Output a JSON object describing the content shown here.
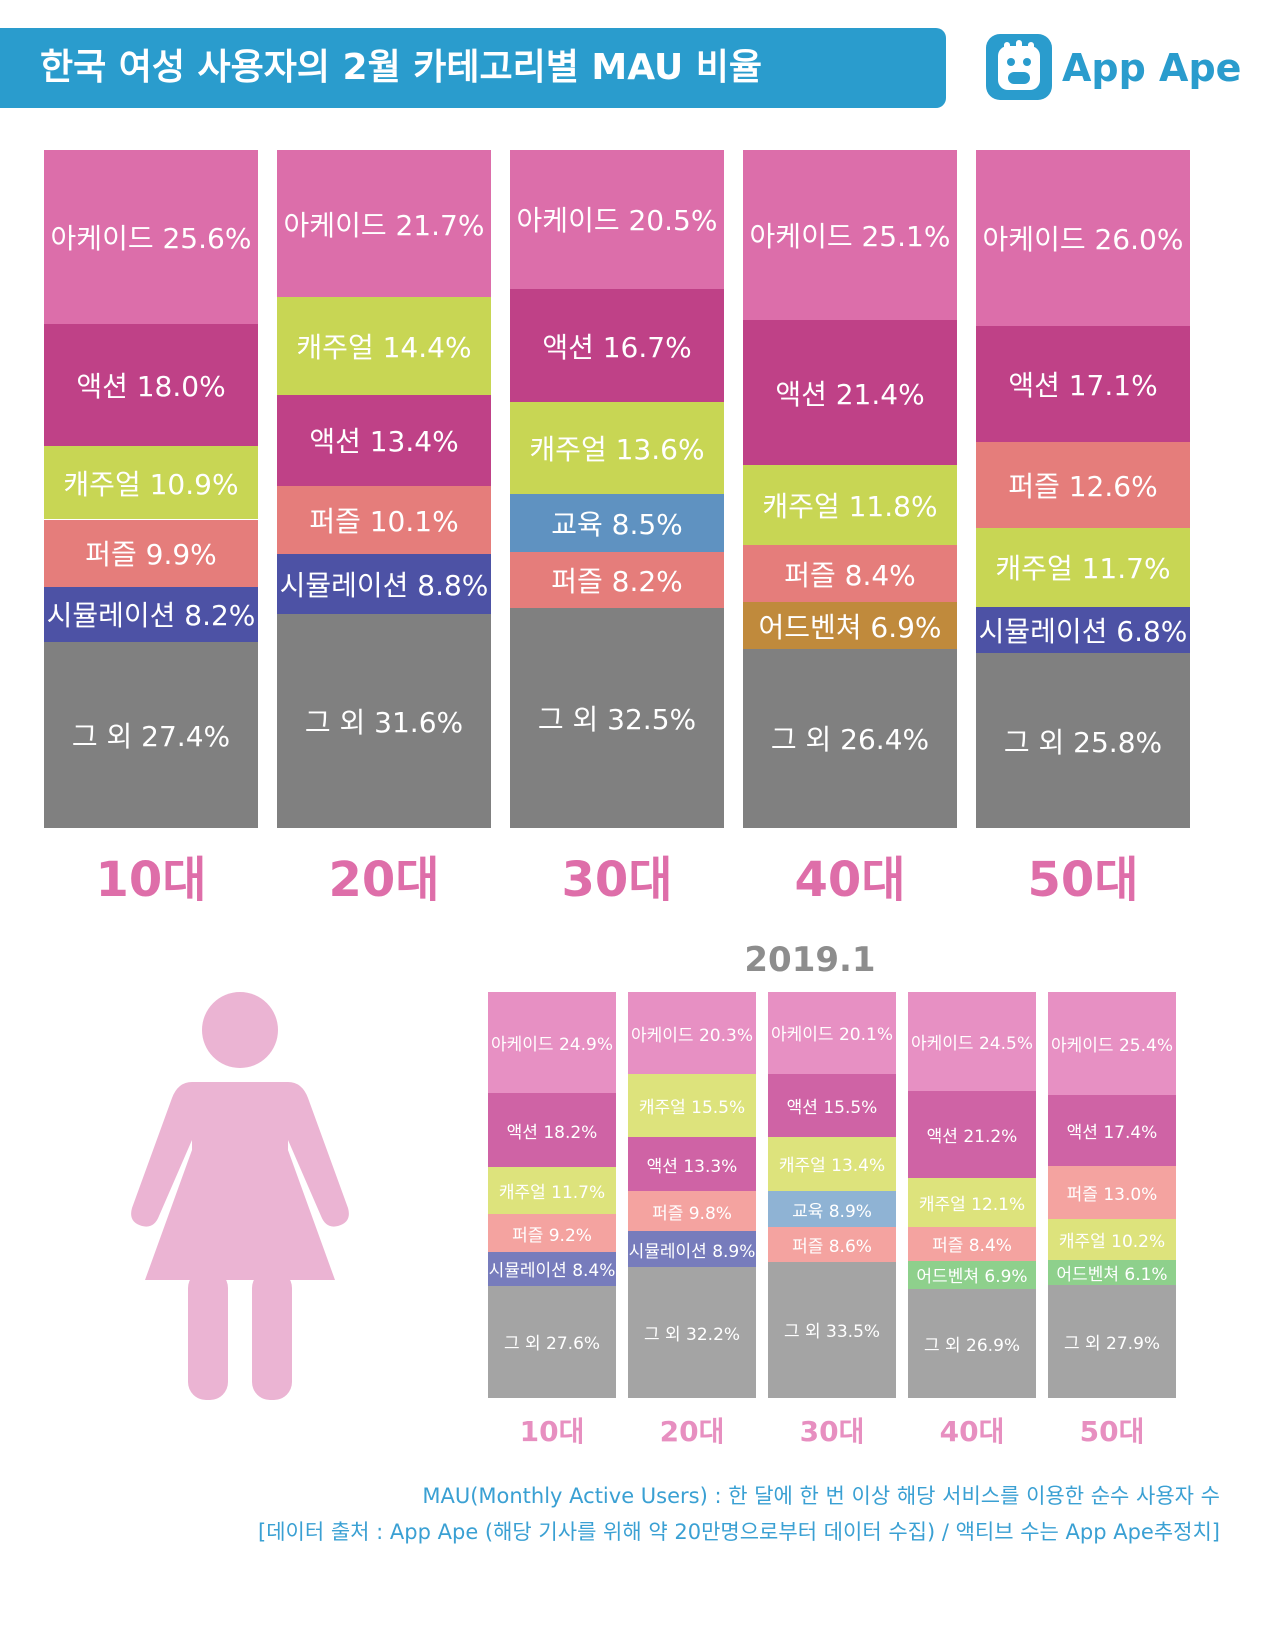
{
  "header": {
    "title": "한국 여성 사용자의 2월 카테고리별 MAU 비율",
    "logo_text": "App Ape"
  },
  "colors": {
    "아케이드": "#dc6eaa",
    "액션": "#bf4187",
    "캐주얼": "#c8d654",
    "퍼즐": "#e57d7b",
    "시뮬레이션": "#4d52a5",
    "교육": "#5f92c1",
    "어드벤쳐": "#c08a3c",
    "그 외": "#808080"
  },
  "colors_small": {
    "아케이드": "#e790c3",
    "액션": "#cf63a5",
    "캐주얼": "#dde37c",
    "퍼즐": "#f4a3a0",
    "시뮬레이션": "#777cbc",
    "교육": "#8fb3d4",
    "어드벤쳐": "#8ed08c",
    "그 외": "#a4a4a4"
  },
  "chart_data": [
    {
      "type": "bar",
      "stacked": true,
      "categories": [
        "10대",
        "20대",
        "30대",
        "40대",
        "50대"
      ],
      "bars": [
        {
          "segments": [
            {
              "label": "아케이드 25.6%",
              "category": "아케이드",
              "value": 25.6
            },
            {
              "label": "액션 18.0%",
              "category": "액션",
              "value": 18.0
            },
            {
              "label": "캐주얼 10.9%",
              "category": "캐주얼",
              "value": 10.9
            },
            {
              "label": "퍼즐 9.9%",
              "category": "퍼즐",
              "value": 9.9
            },
            {
              "label": "시뮬레이션 8.2%",
              "category": "시뮬레이션",
              "value": 8.2
            },
            {
              "label": "그 외 27.4%",
              "category": "그 외",
              "value": 27.4
            }
          ]
        },
        {
          "segments": [
            {
              "label": "아케이드 21.7%",
              "category": "아케이드",
              "value": 21.7
            },
            {
              "label": "캐주얼 14.4%",
              "category": "캐주얼",
              "value": 14.4
            },
            {
              "label": "액션 13.4%",
              "category": "액션",
              "value": 13.4
            },
            {
              "label": "퍼즐 10.1%",
              "category": "퍼즐",
              "value": 10.1
            },
            {
              "label": "시뮬레이션 8.8%",
              "category": "시뮬레이션",
              "value": 8.8
            },
            {
              "label": "그 외 31.6%",
              "category": "그 외",
              "value": 31.6
            }
          ]
        },
        {
          "segments": [
            {
              "label": "아케이드 20.5%",
              "category": "아케이드",
              "value": 20.5
            },
            {
              "label": "액션 16.7%",
              "category": "액션",
              "value": 16.7
            },
            {
              "label": "캐주얼 13.6%",
              "category": "캐주얼",
              "value": 13.6
            },
            {
              "label": "교육 8.5%",
              "category": "교육",
              "value": 8.5
            },
            {
              "label": "퍼즐 8.2%",
              "category": "퍼즐",
              "value": 8.2
            },
            {
              "label": "그 외 32.5%",
              "category": "그 외",
              "value": 32.5
            }
          ]
        },
        {
          "segments": [
            {
              "label": "아케이드 25.1%",
              "category": "아케이드",
              "value": 25.1
            },
            {
              "label": "액션 21.4%",
              "category": "액션",
              "value": 21.4
            },
            {
              "label": "캐주얼 11.8%",
              "category": "캐주얼",
              "value": 11.8
            },
            {
              "label": "퍼즐 8.4%",
              "category": "퍼즐",
              "value": 8.4
            },
            {
              "label": "어드벤쳐 6.9%",
              "category": "어드벤쳐",
              "value": 6.9
            },
            {
              "label": "그 외 26.4%",
              "category": "그 외",
              "value": 26.4
            }
          ]
        },
        {
          "segments": [
            {
              "label": "아케이드 26.0%",
              "category": "아케이드",
              "value": 26.0
            },
            {
              "label": "액션 17.1%",
              "category": "액션",
              "value": 17.1
            },
            {
              "label": "퍼즐 12.6%",
              "category": "퍼즐",
              "value": 12.6
            },
            {
              "label": "캐주얼 11.7%",
              "category": "캐주얼",
              "value": 11.7
            },
            {
              "label": "시뮬레이션 6.8%",
              "category": "시뮬레이션",
              "value": 6.8
            },
            {
              "label": "그 외 25.8%",
              "category": "그 외",
              "value": 25.8
            }
          ]
        }
      ]
    },
    {
      "type": "bar",
      "stacked": true,
      "title": "2019.1",
      "categories": [
        "10대",
        "20대",
        "30대",
        "40대",
        "50대"
      ],
      "bars": [
        {
          "segments": [
            {
              "label": "아케이드 24.9%",
              "category": "아케이드",
              "value": 24.9
            },
            {
              "label": "액션 18.2%",
              "category": "액션",
              "value": 18.2
            },
            {
              "label": "캐주얼 11.7%",
              "category": "캐주얼",
              "value": 11.7
            },
            {
              "label": "퍼즐 9.2%",
              "category": "퍼즐",
              "value": 9.2
            },
            {
              "label": "시뮬레이션 8.4%",
              "category": "시뮬레이션",
              "value": 8.4
            },
            {
              "label": "그 외 27.6%",
              "category": "그 외",
              "value": 27.6
            }
          ]
        },
        {
          "segments": [
            {
              "label": "아케이드 20.3%",
              "category": "아케이드",
              "value": 20.3
            },
            {
              "label": "캐주얼 15.5%",
              "category": "캐주얼",
              "value": 15.5
            },
            {
              "label": "액션 13.3%",
              "category": "액션",
              "value": 13.3
            },
            {
              "label": "퍼즐 9.8%",
              "category": "퍼즐",
              "value": 9.8
            },
            {
              "label": "시뮬레이션 8.9%",
              "category": "시뮬레이션",
              "value": 8.9
            },
            {
              "label": "그 외 32.2%",
              "category": "그 외",
              "value": 32.2
            }
          ]
        },
        {
          "segments": [
            {
              "label": "아케이드 20.1%",
              "category": "아케이드",
              "value": 20.1
            },
            {
              "label": "액션 15.5%",
              "category": "액션",
              "value": 15.5
            },
            {
              "label": "캐주얼 13.4%",
              "category": "캐주얼",
              "value": 13.4
            },
            {
              "label": "교육 8.9%",
              "category": "교육",
              "value": 8.9
            },
            {
              "label": "퍼즐 8.6%",
              "category": "퍼즐",
              "value": 8.6
            },
            {
              "label": "그 외 33.5%",
              "category": "그 외",
              "value": 33.5
            }
          ]
        },
        {
          "segments": [
            {
              "label": "아케이드 24.5%",
              "category": "아케이드",
              "value": 24.5
            },
            {
              "label": "액션 21.2%",
              "category": "액션",
              "value": 21.2
            },
            {
              "label": "캐주얼 12.1%",
              "category": "캐주얼",
              "value": 12.1
            },
            {
              "label": "퍼즐 8.4%",
              "category": "퍼즐",
              "value": 8.4
            },
            {
              "label": "어드벤쳐 6.9%",
              "category": "어드벤쳐",
              "value": 6.9
            },
            {
              "label": "그 외 26.9%",
              "category": "그 외",
              "value": 26.9
            }
          ]
        },
        {
          "segments": [
            {
              "label": "아케이드 25.4%",
              "category": "아케이드",
              "value": 25.4
            },
            {
              "label": "액션 17.4%",
              "category": "액션",
              "value": 17.4
            },
            {
              "label": "퍼즐 13.0%",
              "category": "퍼즐",
              "value": 13.0
            },
            {
              "label": "캐주얼 10.2%",
              "category": "캐주얼",
              "value": 10.2
            },
            {
              "label": "어드벤쳐 6.1%",
              "category": "어드벤쳐",
              "value": 6.1
            },
            {
              "label": "그 외 27.9%",
              "category": "그 외",
              "value": 27.9
            }
          ]
        }
      ]
    }
  ],
  "footer": {
    "note1": "MAU(Monthly Active Users) : 한 달에 한 번 이상 해당 서비스를 이용한 순수 사용자 수",
    "note2": "[데이터 출처 : App Ape (해당 기사를 위해 약 20만명으로부터 데이터 수집) / 액티브 수는 App Ape추정치]"
  }
}
